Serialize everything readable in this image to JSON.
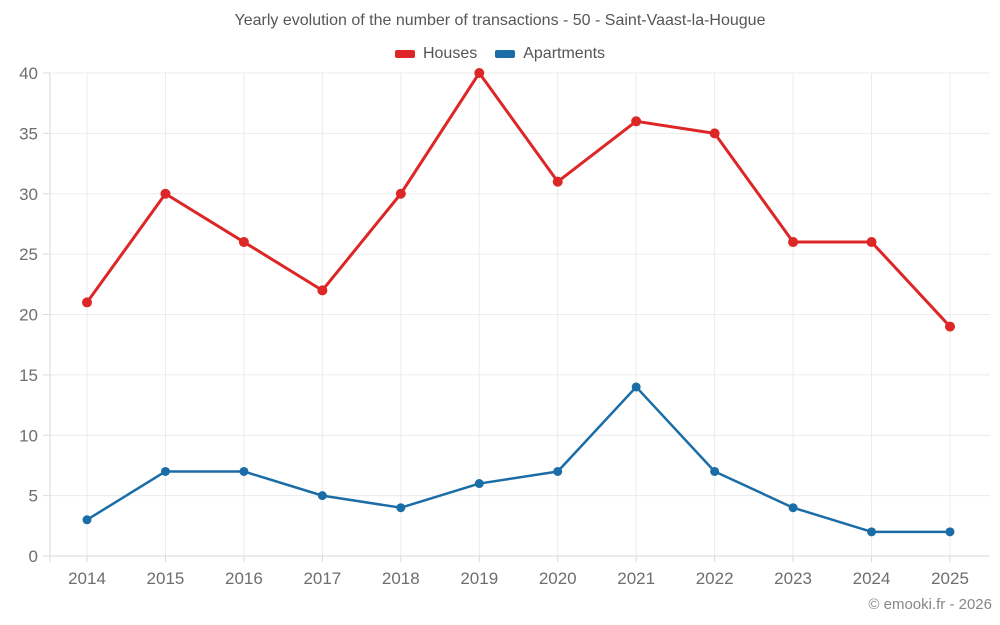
{
  "chart": {
    "title": "Yearly evolution of the number of transactions - 50 - Saint-Vaast-la-Hougue"
  },
  "footer": {
    "text": "© emooki.fr - 2026"
  },
  "chart_data": {
    "type": "line",
    "title": "Yearly evolution of the number of transactions - 50 - Saint-Vaast-la-Hougue",
    "categories": [
      "2014",
      "2015",
      "2016",
      "2017",
      "2018",
      "2019",
      "2020",
      "2021",
      "2022",
      "2023",
      "2024",
      "2025"
    ],
    "series": [
      {
        "name": "Houses",
        "color": "#dd2727",
        "marker_radius": 5,
        "line_width": 3,
        "values": [
          21,
          30,
          26,
          22,
          30,
          40,
          31,
          36,
          35,
          26,
          26,
          19
        ]
      },
      {
        "name": "Apartments",
        "color": "#1a6da6",
        "marker_radius": 4.5,
        "line_width": 2.5,
        "values": [
          3,
          7,
          7,
          5,
          4,
          6,
          7,
          14,
          7,
          4,
          2,
          2
        ]
      }
    ],
    "xlabel": "",
    "ylabel": "",
    "ylim": [
      0,
      40
    ],
    "ytick_step": 5,
    "grid": true,
    "legend_position": "top",
    "style": {
      "grid_color": "#ececec",
      "axis_color": "#d9d9d9",
      "tick_label_color": "#6e6e6e"
    }
  }
}
